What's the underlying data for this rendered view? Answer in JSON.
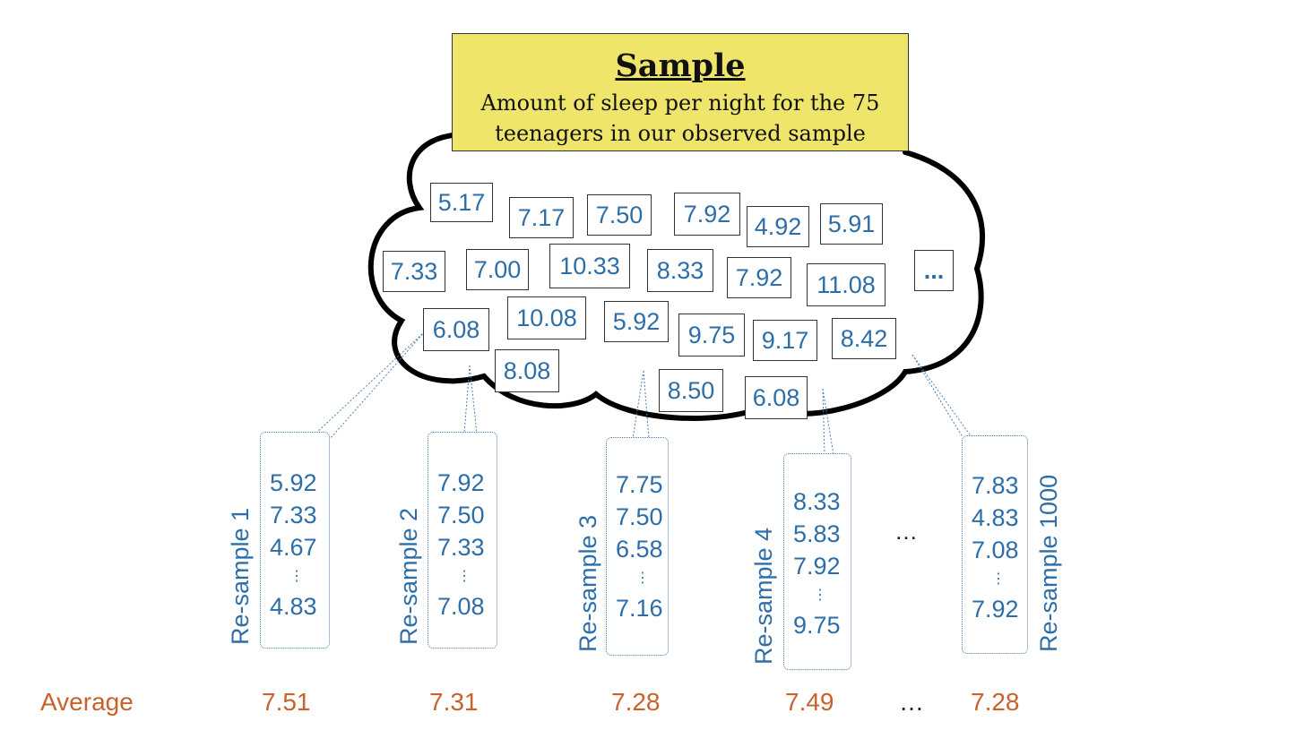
{
  "header": {
    "title": "Sample",
    "subtitle": "Amount of sleep per night for the 75 teenagers in our observed sample"
  },
  "cloud_values": [
    "5.17",
    "7.17",
    "7.50",
    "7.92",
    "4.92",
    "5.91",
    "7.33",
    "7.00",
    "10.33",
    "8.33",
    "7.92",
    "11.08",
    "...",
    "6.08",
    "10.08",
    "5.92",
    "9.75",
    "9.17",
    "8.42",
    "8.08",
    "8.50",
    "6.08"
  ],
  "resamples": [
    {
      "label": "Re-sample 1",
      "values": [
        "5.92",
        "7.33",
        "4.67",
        "⋮",
        "4.83"
      ],
      "average": "7.51"
    },
    {
      "label": "Re-sample 2",
      "values": [
        "7.92",
        "7.50",
        "7.33",
        "⋮",
        "7.08"
      ],
      "average": "7.31"
    },
    {
      "label": "Re-sample 3",
      "values": [
        "7.75",
        "7.50",
        "6.58",
        "⋮",
        "7.16"
      ],
      "average": "7.28"
    },
    {
      "label": "Re-sample 4",
      "values": [
        "8.33",
        "5.83",
        "7.92",
        "⋮",
        "9.75"
      ],
      "average": "7.49"
    },
    {
      "label": "Re-sample 1000",
      "values": [
        "7.83",
        "4.83",
        "7.08",
        "⋮",
        "7.92"
      ],
      "average": "7.28"
    }
  ],
  "average_label": "Average",
  "ellipsis": "…",
  "colors": {
    "value_text": "#2e6ea8",
    "average_text": "#c8612a",
    "title_fill": "#efe56b"
  }
}
